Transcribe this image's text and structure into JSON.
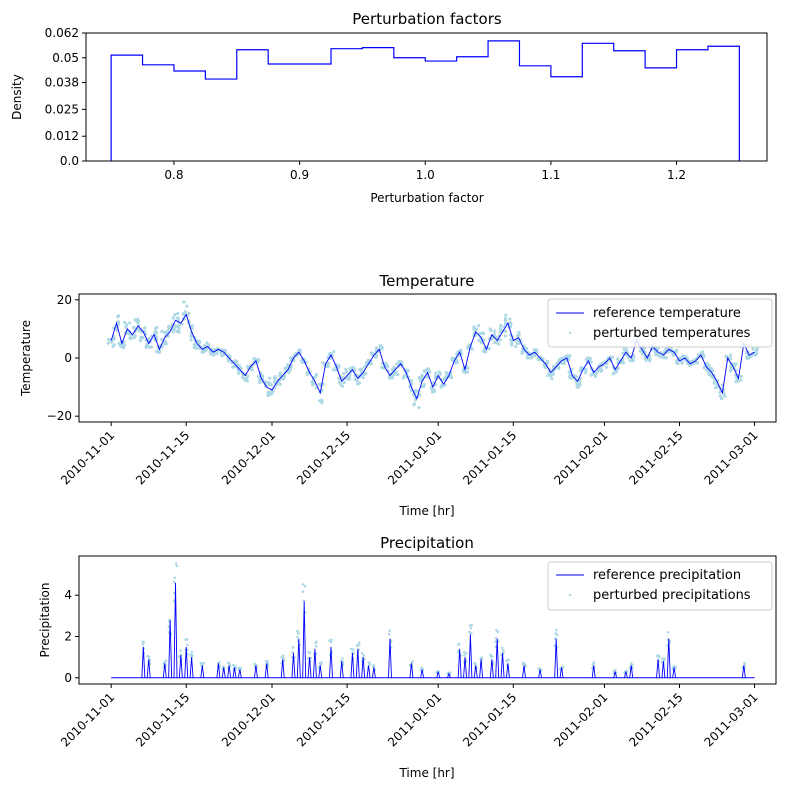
{
  "colors": {
    "reference": "#0000ff",
    "perturbed": "#add8e6",
    "histogram": "#0000ff",
    "axes": "#000000",
    "legend_border": "#cccccc"
  },
  "chart_data": [
    {
      "type": "histogram",
      "title": "Perturbation factors",
      "xlabel": "Perturbation factor",
      "ylabel": "Density",
      "xlim": [
        0.73,
        1.272
      ],
      "ylim": [
        0,
        0.062
      ],
      "x_ticks": [
        0.8,
        0.9,
        1.0,
        1.1,
        1.2
      ],
      "x_tick_labels": [
        "0.8",
        "0.9",
        "1.0",
        "1.1",
        "1.2"
      ],
      "y_ticks": [
        0,
        0.012,
        0.025,
        0.038,
        0.05,
        0.062
      ],
      "y_tick_labels": [
        "0.0",
        "0.012",
        "0.025",
        "0.038",
        "0.05",
        "0.062"
      ],
      "bin_edges": [
        0.75,
        0.775,
        0.8,
        0.825,
        0.85,
        0.875,
        0.9,
        0.925,
        0.95,
        0.975,
        1.0,
        1.025,
        1.05,
        1.075,
        1.1,
        1.125,
        1.15,
        1.175,
        1.2,
        1.225,
        1.25
      ],
      "values": [
        0.0513,
        0.0466,
        0.0436,
        0.0397,
        0.0539,
        0.047,
        0.047,
        0.0544,
        0.0549,
        0.05,
        0.0484,
        0.0505,
        0.0582,
        0.0461,
        0.0408,
        0.057,
        0.0534,
        0.0451,
        0.0539,
        0.0556
      ],
      "grid": false
    },
    {
      "type": "line",
      "title": "Temperature",
      "xlabel": "Time [hr]",
      "ylabel": "Temperature",
      "x_type": "date",
      "xlim": [
        "2010-10-26",
        "2011-03-05"
      ],
      "ylim": [
        -22,
        22
      ],
      "y_ticks": [
        -20,
        0,
        20
      ],
      "y_tick_labels": [
        "−20",
        "0",
        "20"
      ],
      "x_ticks": [
        "2010-11-01",
        "2010-11-15",
        "2010-12-01",
        "2010-12-15",
        "2011-01-01",
        "2011-01-15",
        "2011-02-01",
        "2011-02-15",
        "2011-03-01"
      ],
      "x_tick_labels": [
        "2010-11-01",
        "2010-11-15",
        "2010-12-01",
        "2010-12-15",
        "2011-01-01",
        "2011-01-15",
        "2011-02-01",
        "2011-02-15",
        "2011-03-01"
      ],
      "legend_position": "top-right",
      "series": [
        {
          "name": "reference temperature",
          "style": "line",
          "x": [
            "2010-11-01",
            "2010-11-02",
            "2010-11-03",
            "2010-11-04",
            "2010-11-05",
            "2010-11-06",
            "2010-11-07",
            "2010-11-08",
            "2010-11-09",
            "2010-11-10",
            "2010-11-11",
            "2010-11-12",
            "2010-11-13",
            "2010-11-14",
            "2010-11-15",
            "2010-11-16",
            "2010-11-17",
            "2010-11-18",
            "2010-11-19",
            "2010-11-20",
            "2010-11-21",
            "2010-11-22",
            "2010-11-23",
            "2010-11-24",
            "2010-11-25",
            "2010-11-26",
            "2010-11-27",
            "2010-11-28",
            "2010-11-29",
            "2010-11-30",
            "2010-12-01",
            "2010-12-02",
            "2010-12-03",
            "2010-12-04",
            "2010-12-05",
            "2010-12-06",
            "2010-12-07",
            "2010-12-08",
            "2010-12-09",
            "2010-12-10",
            "2010-12-11",
            "2010-12-12",
            "2010-12-13",
            "2010-12-14",
            "2010-12-15",
            "2010-12-16",
            "2010-12-17",
            "2010-12-18",
            "2010-12-19",
            "2010-12-20",
            "2010-12-21",
            "2010-12-22",
            "2010-12-23",
            "2010-12-24",
            "2010-12-25",
            "2010-12-26",
            "2010-12-27",
            "2010-12-28",
            "2010-12-29",
            "2010-12-30",
            "2010-12-31",
            "2011-01-01",
            "2011-01-02",
            "2011-01-03",
            "2011-01-04",
            "2011-01-05",
            "2011-01-06",
            "2011-01-07",
            "2011-01-08",
            "2011-01-09",
            "2011-01-10",
            "2011-01-11",
            "2011-01-12",
            "2011-01-13",
            "2011-01-14",
            "2011-01-15",
            "2011-01-16",
            "2011-01-17",
            "2011-01-18",
            "2011-01-19",
            "2011-01-20",
            "2011-01-21",
            "2011-01-22",
            "2011-01-23",
            "2011-01-24",
            "2011-01-25",
            "2011-01-26",
            "2011-01-27",
            "2011-01-28",
            "2011-01-29",
            "2011-01-30",
            "2011-01-31",
            "2011-02-01",
            "2011-02-02",
            "2011-02-03",
            "2011-02-04",
            "2011-02-05",
            "2011-02-06",
            "2011-02-07",
            "2011-02-08",
            "2011-02-09",
            "2011-02-10",
            "2011-02-11",
            "2011-02-12",
            "2011-02-13",
            "2011-02-14",
            "2011-02-15",
            "2011-02-16",
            "2011-02-17",
            "2011-02-18",
            "2011-02-19",
            "2011-02-20",
            "2011-02-21",
            "2011-02-22",
            "2011-02-23",
            "2011-02-24",
            "2011-02-25",
            "2011-02-26",
            "2011-02-27",
            "2011-02-28",
            "2011-03-01"
          ],
          "y": [
            6,
            12,
            5,
            10,
            8,
            11,
            9,
            5,
            8,
            3,
            7,
            9,
            13,
            12,
            15,
            9,
            5,
            3,
            4,
            2,
            3,
            2,
            0,
            -2,
            -4,
            -6,
            -3,
            -1,
            -7,
            -10,
            -11,
            -8,
            -6,
            -4,
            0,
            2,
            -1,
            -5,
            -8,
            -12,
            -2,
            1,
            -3,
            -8,
            -6,
            -4,
            -7,
            -5,
            -2,
            1,
            3,
            -3,
            -6,
            -4,
            -2,
            -5,
            -10,
            -14,
            -8,
            -5,
            -10,
            -6,
            -9,
            -6,
            -1,
            2,
            -4,
            4,
            9,
            7,
            3,
            8,
            6,
            9,
            12,
            6,
            7,
            3,
            1,
            2,
            0,
            -2,
            -5,
            -3,
            -1,
            0,
            -6,
            -8,
            -4,
            -1,
            -5,
            -3,
            -2,
            0,
            -4,
            -1,
            2,
            0,
            6,
            3,
            0,
            4,
            2,
            1,
            3,
            2,
            -1,
            0,
            -2,
            -1,
            1,
            -3,
            -5,
            -8,
            -12,
            0,
            -3,
            -7,
            5,
            1,
            2
          ]
        },
        {
          "name": "perturbed temperatures",
          "style": "scatter-band",
          "band_relative_spread": 0.25
        }
      ]
    },
    {
      "type": "line",
      "title": "Precipitation",
      "xlabel": "Time [hr]",
      "ylabel": "Precipitation",
      "x_type": "date",
      "xlim": [
        "2010-10-26",
        "2011-03-05"
      ],
      "ylim": [
        -0.3,
        5.9
      ],
      "y_ticks": [
        0,
        2,
        4
      ],
      "y_tick_labels": [
        "0",
        "2",
        "4"
      ],
      "x_ticks": [
        "2010-11-01",
        "2010-11-15",
        "2010-12-01",
        "2010-12-15",
        "2011-01-01",
        "2011-01-15",
        "2011-02-01",
        "2011-02-15",
        "2011-03-01"
      ],
      "x_tick_labels": [
        "2010-11-01",
        "2010-11-15",
        "2010-12-01",
        "2010-12-15",
        "2011-01-01",
        "2011-01-15",
        "2011-02-01",
        "2011-02-15",
        "2011-03-01"
      ],
      "legend_position": "top-right",
      "series": [
        {
          "name": "reference precipitation",
          "style": "spikes",
          "x": [
            "2010-11-07",
            "2010-11-08",
            "2010-11-11",
            "2010-11-12",
            "2010-11-13",
            "2010-11-14",
            "2010-11-15",
            "2010-11-16",
            "2010-11-18",
            "2010-11-21",
            "2010-11-22",
            "2010-11-23",
            "2010-11-24",
            "2010-11-25",
            "2010-11-28",
            "2010-11-30",
            "2010-12-03",
            "2010-12-05",
            "2010-12-06",
            "2010-12-07",
            "2010-12-08",
            "2010-12-09",
            "2010-12-10",
            "2010-12-12",
            "2010-12-14",
            "2010-12-16",
            "2010-12-17",
            "2010-12-18",
            "2010-12-19",
            "2010-12-20",
            "2010-12-23",
            "2010-12-27",
            "2010-12-29",
            "2011-01-01",
            "2011-01-03",
            "2011-01-05",
            "2011-01-06",
            "2011-01-07",
            "2011-01-08",
            "2011-01-09",
            "2011-01-11",
            "2011-01-12",
            "2011-01-13",
            "2011-01-14",
            "2011-01-17",
            "2011-01-20",
            "2011-01-23",
            "2011-01-24",
            "2011-01-30",
            "2011-02-03",
            "2011-02-05",
            "2011-02-06",
            "2011-02-11",
            "2011-02-12",
            "2011-02-13",
            "2011-02-14",
            "2011-02-27"
          ],
          "y": [
            1.5,
            0.9,
            0.7,
            2.8,
            4.6,
            1.1,
            1.5,
            1.0,
            0.6,
            0.7,
            0.5,
            0.6,
            0.5,
            0.4,
            0.6,
            0.7,
            0.9,
            1.2,
            1.9,
            3.7,
            1.0,
            1.4,
            0.6,
            1.5,
            0.8,
            1.2,
            1.4,
            1.0,
            0.6,
            0.5,
            1.9,
            0.7,
            0.4,
            0.3,
            0.2,
            1.4,
            1.0,
            2.1,
            0.6,
            0.9,
            0.9,
            1.9,
            1.2,
            0.7,
            0.6,
            0.4,
            1.9,
            0.5,
            0.6,
            0.3,
            0.3,
            0.6,
            0.9,
            0.8,
            1.9,
            0.5,
            0.6
          ]
        },
        {
          "name": "perturbed precipitations",
          "style": "scatter-band",
          "band_relative_spread": 0.25
        }
      ]
    }
  ]
}
